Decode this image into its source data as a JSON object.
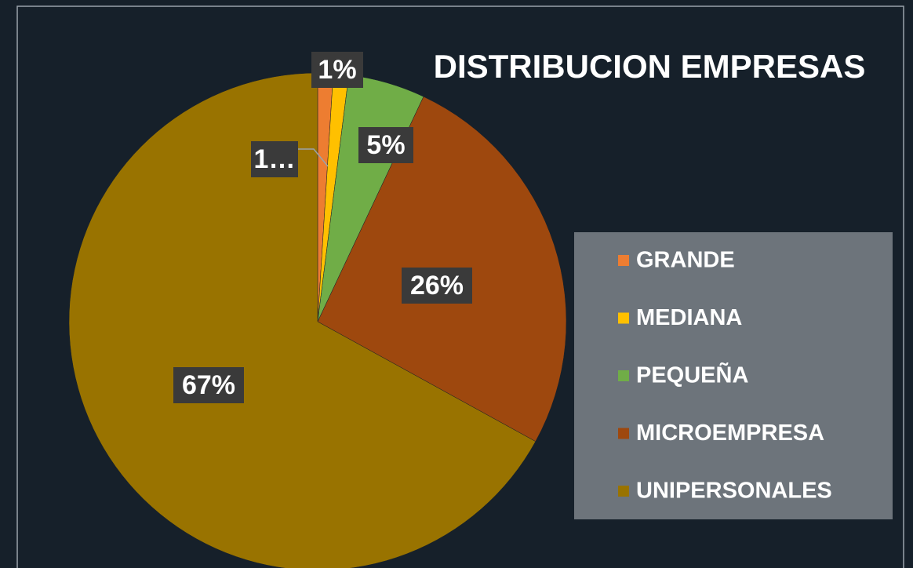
{
  "chart_data": {
    "type": "pie",
    "title": "DISTRIBUCION EMPRESAS",
    "categories": [
      "GRANDE",
      "MEDIANA",
      "PEQUEÑA",
      "MICROEMPRESA",
      "UNIPERSONALES"
    ],
    "values": [
      1,
      1,
      5,
      26,
      67
    ],
    "value_labels": [
      "1%",
      "1…",
      "5%",
      "26%",
      "67%"
    ],
    "colors": [
      "#ed7d31",
      "#ffc000",
      "#70ad47",
      "#9e480e",
      "#997300"
    ],
    "legend": "right"
  }
}
